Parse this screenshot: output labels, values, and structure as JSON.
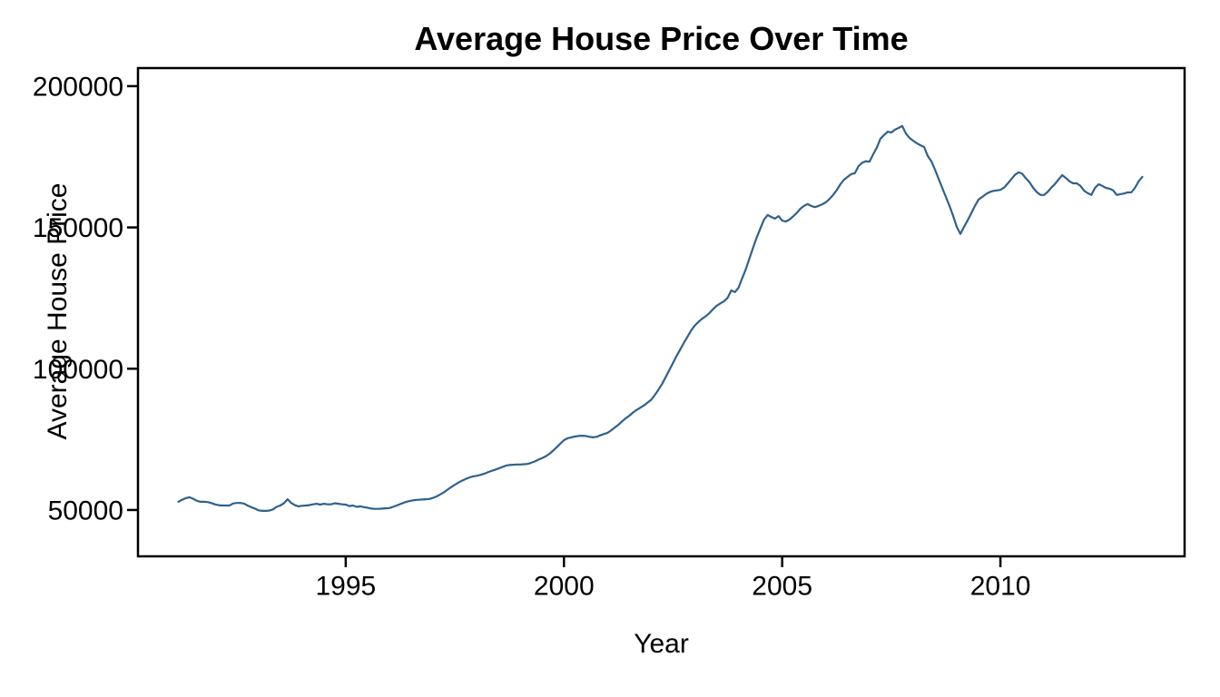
{
  "chart_data": {
    "type": "line",
    "title": "Average House Price Over Time",
    "xlabel": "Year",
    "ylabel": "Average House Price",
    "x_ticks": [
      1995,
      2000,
      2005,
      2010
    ],
    "y_ticks": [
      50000,
      100000,
      150000,
      200000
    ],
    "xlim": [
      1990.24,
      2014.22
    ],
    "ylim": [
      33600,
      206400
    ],
    "grid": "off",
    "legend": "none",
    "line_color": "#2F618C",
    "axis_color": "#000000",
    "background_color": "#ffffff",
    "series": [
      {
        "name": "Average House Price",
        "x_start": 1991.1667,
        "x_step": 0.0833333,
        "values": [
          52900,
          53600,
          54200,
          54500,
          54000,
          53300,
          52900,
          52900,
          52800,
          52500,
          52000,
          51700,
          51600,
          51600,
          51600,
          52300,
          52500,
          52500,
          52300,
          51600,
          51000,
          50500,
          49900,
          49700,
          49700,
          49800,
          50200,
          51100,
          51600,
          52400,
          53800,
          52500,
          51700,
          51300,
          51500,
          51600,
          51700,
          52000,
          52200,
          51900,
          52200,
          52000,
          52000,
          52400,
          52200,
          52000,
          51900,
          51400,
          51600,
          51100,
          51300,
          51000,
          50800,
          50500,
          50400,
          50400,
          50500,
          50600,
          50700,
          51100,
          51600,
          52100,
          52600,
          53000,
          53300,
          53500,
          53600,
          53700,
          53800,
          53900,
          54300,
          54800,
          55500,
          56300,
          57200,
          58100,
          58900,
          59700,
          60400,
          61000,
          61500,
          61900,
          62100,
          62400,
          62800,
          63300,
          63800,
          64200,
          64700,
          65200,
          65700,
          65900,
          66000,
          66100,
          66100,
          66200,
          66300,
          66700,
          67200,
          67800,
          68400,
          69000,
          69900,
          71000,
          72200,
          73500,
          74700,
          75400,
          75700,
          76000,
          76200,
          76300,
          76200,
          75900,
          75700,
          75900,
          76400,
          76900,
          77300,
          78200,
          79200,
          80200,
          81400,
          82500,
          83400,
          84500,
          85400,
          86200,
          87000,
          88000,
          89000,
          90700,
          92600,
          94700,
          97100,
          99600,
          102100,
          104600,
          106900,
          109200,
          111400,
          113600,
          115300,
          116600,
          117700,
          118600,
          119700,
          121100,
          122300,
          123100,
          123900,
          125100,
          127700,
          127100,
          128700,
          132000,
          135200,
          139000,
          142800,
          146400,
          149600,
          152800,
          154400,
          153700,
          153100,
          154000,
          152400,
          152100,
          152800,
          153900,
          155100,
          156600,
          157600,
          158300,
          157600,
          157200,
          157600,
          158200,
          158900,
          160100,
          161500,
          163200,
          165300,
          166900,
          167900,
          168900,
          169200,
          171700,
          172900,
          173400,
          173300,
          175900,
          178200,
          181400,
          182700,
          183900,
          183600,
          184600,
          185200,
          185900,
          183300,
          181700,
          180700,
          179800,
          179100,
          178500,
          175300,
          173400,
          170500,
          167200,
          164000,
          160800,
          157600,
          154100,
          150200,
          147700,
          150200,
          152500,
          155000,
          157600,
          159900,
          160800,
          161800,
          162500,
          162900,
          163100,
          163300,
          164100,
          165500,
          167100,
          168600,
          169500,
          169000,
          167400,
          166000,
          164000,
          162500,
          161500,
          161500,
          162600,
          164100,
          165400,
          167000,
          168500,
          167500,
          166300,
          165600,
          165600,
          164700,
          163000,
          162100,
          161500,
          164000,
          165300,
          164700,
          164000,
          163700,
          163100,
          161500,
          161800,
          162000,
          162400,
          162400,
          164000,
          166300,
          167900
        ]
      }
    ]
  }
}
